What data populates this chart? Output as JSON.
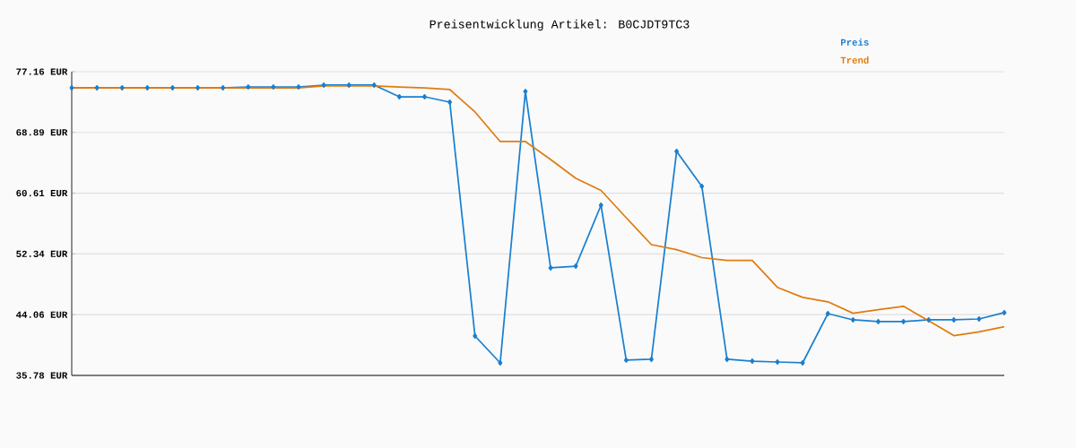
{
  "chart_data": {
    "type": "line",
    "title": "Preisentwicklung Artikel: B0CJDT9TC3",
    "categories": [
      null,
      null,
      null,
      null,
      null,
      null,
      null,
      null,
      null,
      null,
      null,
      null,
      null,
      null,
      null,
      null,
      null,
      null,
      null,
      null,
      null,
      null,
      null,
      null,
      null,
      null,
      null,
      null,
      null,
      null,
      null,
      null,
      null,
      null,
      null,
      null,
      null,
      null
    ],
    "series": [
      {
        "name": "Preis",
        "color": "#1a7fcf",
        "marker": "diamond",
        "values": [
          74.96,
          74.96,
          74.96,
          74.96,
          74.96,
          74.96,
          74.96,
          75.08,
          75.08,
          75.08,
          75.33,
          75.33,
          75.33,
          73.74,
          73.74,
          73.01,
          41.15,
          37.49,
          74.47,
          50.43,
          50.67,
          58.97,
          37.86,
          37.98,
          66.3,
          61.54,
          37.98,
          37.73,
          37.61,
          37.49,
          44.2,
          43.35,
          43.11,
          43.11,
          43.35,
          43.35,
          43.47,
          44.33
        ]
      },
      {
        "name": "Trend",
        "color": "#e07b10",
        "marker": "none",
        "values": [
          74.96,
          74.96,
          74.96,
          74.96,
          74.96,
          74.96,
          74.96,
          74.96,
          74.96,
          74.96,
          75.21,
          75.21,
          75.21,
          75.08,
          74.96,
          74.72,
          71.67,
          67.64,
          67.64,
          65.2,
          62.63,
          60.99,
          57.26,
          53.6,
          52.92,
          51.83,
          51.44,
          51.44,
          47.78,
          46.42,
          45.81,
          44.25,
          44.73,
          45.2,
          43.23,
          41.2,
          41.72,
          42.42
        ]
      }
    ],
    "ylim": [
      35.78,
      77.16
    ],
    "yticks": [
      {
        "value": 35.78,
        "label": "35.78 EUR"
      },
      {
        "value": 44.06,
        "label": "44.06 EUR"
      },
      {
        "value": 52.34,
        "label": "52.34 EUR"
      },
      {
        "value": 60.61,
        "label": "60.61 EUR"
      },
      {
        "value": 68.89,
        "label": "68.89 EUR"
      },
      {
        "value": 77.16,
        "label": "77.16 EUR"
      }
    ],
    "grid": "y",
    "legend": "top right",
    "line_style": "solid"
  }
}
